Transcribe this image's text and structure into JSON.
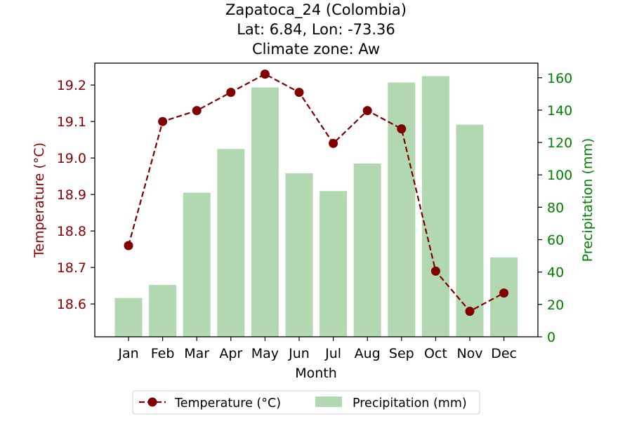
{
  "chart_data": {
    "type": "bar+line",
    "title_lines": [
      "Zapatoca_24 (Colombia)",
      "Lat: 6.84, Lon: -73.36",
      "Climate zone: Aw"
    ],
    "xlabel": "Month",
    "ylabel_left": "Temperature (°C)",
    "ylabel_right": "Precipitation (mm)",
    "categories": [
      "Jan",
      "Feb",
      "Mar",
      "Apr",
      "May",
      "Jun",
      "Jul",
      "Aug",
      "Sep",
      "Oct",
      "Nov",
      "Dec"
    ],
    "series": [
      {
        "name": "Temperature (°C)",
        "type": "line",
        "axis": "left",
        "values": [
          18.76,
          19.1,
          19.13,
          19.18,
          19.23,
          19.18,
          19.04,
          19.13,
          19.08,
          18.69,
          18.58,
          18.63
        ]
      },
      {
        "name": "Precipitation (mm)",
        "type": "bar",
        "axis": "right",
        "values": [
          24,
          32,
          89,
          116,
          154,
          101,
          90,
          107,
          157,
          161,
          131,
          49
        ]
      }
    ],
    "ylim_left": [
      18.51,
      19.26
    ],
    "yticks_left": [
      "18.6",
      "18.7",
      "18.8",
      "18.9",
      "19.0",
      "19.1",
      "19.2"
    ],
    "ylim_right": [
      0,
      169
    ],
    "yticks_right": [
      "0",
      "20",
      "40",
      "60",
      "80",
      "100",
      "120",
      "140",
      "160"
    ],
    "legend_position": "bottom-center",
    "grid": false,
    "colors": {
      "temperature": "#800000",
      "precipitation": "#b2d8b2",
      "left_axis": "#8b0000",
      "right_axis": "#008000",
      "text": "#000000"
    }
  }
}
